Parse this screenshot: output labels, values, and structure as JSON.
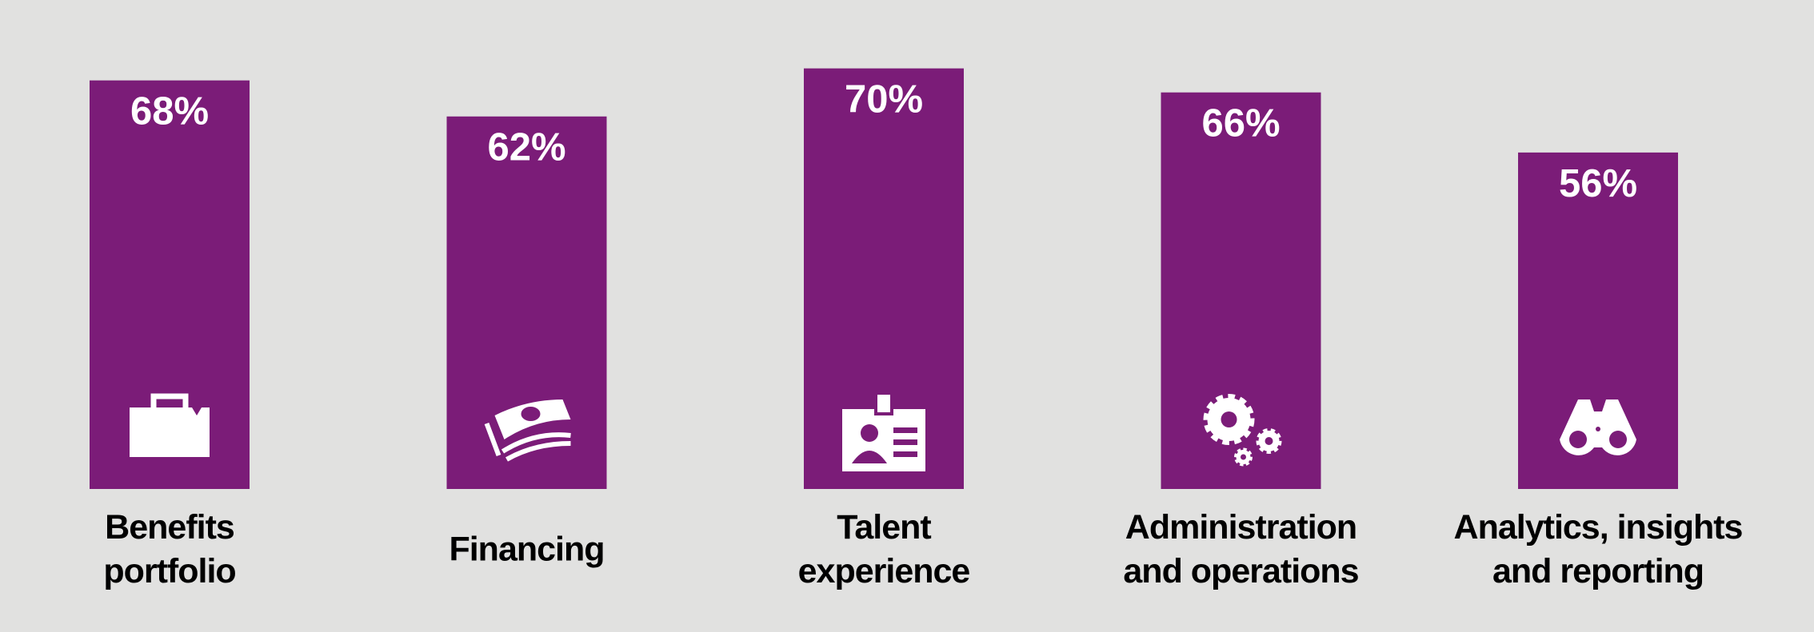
{
  "chart_data": {
    "type": "bar",
    "categories": [
      [
        "Benefits",
        "portfolio"
      ],
      [
        "Financing"
      ],
      [
        "Talent",
        "experience"
      ],
      [
        "Administration",
        "and operations"
      ],
      [
        "Analytics, insights",
        "and reporting"
      ]
    ],
    "values": [
      68,
      62,
      70,
      66,
      56
    ],
    "value_labels": [
      "68%",
      "62%",
      "70%",
      "66%",
      "56%"
    ],
    "color": "#7b1c78"
  }
}
